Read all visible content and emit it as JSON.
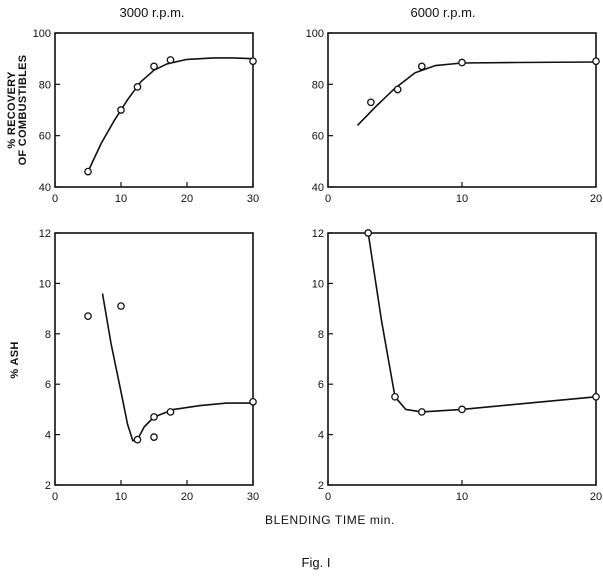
{
  "figure": {
    "xlabel": "BLENDING TIME min.",
    "caption": "Fig. I"
  },
  "chart_data": [
    {
      "type": "scatter",
      "title": "3000 r.p.m.",
      "xlabel": "",
      "ylabel": "% RECOVERY OF COMBUSTIBLES",
      "xlim": [
        0,
        30
      ],
      "ylim": [
        40,
        100
      ],
      "xticks": [
        "0",
        "10",
        "20",
        "30"
      ],
      "yticks": [
        "40",
        "60",
        "80",
        "100"
      ],
      "points": [
        [
          5,
          46
        ],
        [
          10,
          70
        ],
        [
          12.5,
          79
        ],
        [
          15,
          87
        ],
        [
          17.5,
          89.5
        ],
        [
          30,
          89
        ]
      ],
      "curve": [
        [
          5,
          46
        ],
        [
          7,
          57
        ],
        [
          9,
          66
        ],
        [
          11,
          74
        ],
        [
          13,
          81
        ],
        [
          15,
          85.5
        ],
        [
          17,
          88
        ],
        [
          20,
          89.7
        ],
        [
          24,
          90.3
        ],
        [
          27,
          90.3
        ],
        [
          30,
          90
        ]
      ]
    },
    {
      "type": "scatter",
      "title": "6000 r.p.m.",
      "xlabel": "",
      "ylabel": "",
      "xlim": [
        0,
        20
      ],
      "ylim": [
        40,
        100
      ],
      "xticks": [
        "0",
        "10",
        "20"
      ],
      "yticks": [
        "40",
        "60",
        "80",
        "100"
      ],
      "points": [
        [
          3.2,
          73
        ],
        [
          5.2,
          78
        ],
        [
          7,
          87
        ],
        [
          10,
          88.5
        ],
        [
          20,
          89
        ]
      ],
      "curve": [
        [
          2.2,
          64
        ],
        [
          3.5,
          71
        ],
        [
          5,
          78.5
        ],
        [
          6.5,
          84.5
        ],
        [
          8,
          87.3
        ],
        [
          10,
          88.3
        ],
        [
          14,
          88.5
        ],
        [
          20,
          88.7
        ]
      ]
    },
    {
      "type": "scatter",
      "title": "",
      "xlabel": "",
      "ylabel": "% ASH",
      "xlim": [
        0,
        30
      ],
      "ylim": [
        2,
        12
      ],
      "xticks": [
        "0",
        "10",
        "20",
        "30"
      ],
      "yticks": [
        "2",
        "4",
        "6",
        "8",
        "10",
        "12"
      ],
      "points": [
        [
          5,
          8.7
        ],
        [
          10,
          9.1
        ],
        [
          12.5,
          3.8
        ],
        [
          15,
          3.9
        ],
        [
          15,
          4.7
        ],
        [
          17.5,
          4.9
        ],
        [
          30,
          5.3
        ]
      ],
      "curve": [
        [
          7.2,
          9.6
        ],
        [
          8.5,
          7.6
        ],
        [
          10,
          5.7
        ],
        [
          11,
          4.4
        ],
        [
          11.8,
          3.75
        ],
        [
          12.5,
          3.8
        ],
        [
          13.5,
          4.3
        ],
        [
          15,
          4.7
        ],
        [
          18,
          5.0
        ],
        [
          22,
          5.15
        ],
        [
          26,
          5.25
        ],
        [
          30,
          5.25
        ]
      ]
    },
    {
      "type": "scatter",
      "title": "",
      "xlabel": "",
      "ylabel": "",
      "xlim": [
        0,
        20
      ],
      "ylim": [
        2,
        12
      ],
      "xticks": [
        "0",
        "10",
        "20"
      ],
      "yticks": [
        "2",
        "4",
        "6",
        "8",
        "10",
        "12"
      ],
      "points": [
        [
          3,
          12
        ],
        [
          5,
          5.5
        ],
        [
          7,
          4.9
        ],
        [
          10,
          5.0
        ],
        [
          20,
          5.5
        ]
      ],
      "curve": [
        [
          3,
          12
        ],
        [
          4,
          8.5
        ],
        [
          5,
          5.5
        ],
        [
          5.8,
          5.0
        ],
        [
          7,
          4.9
        ],
        [
          10,
          5.0
        ],
        [
          15,
          5.25
        ],
        [
          20,
          5.5
        ]
      ]
    }
  ]
}
